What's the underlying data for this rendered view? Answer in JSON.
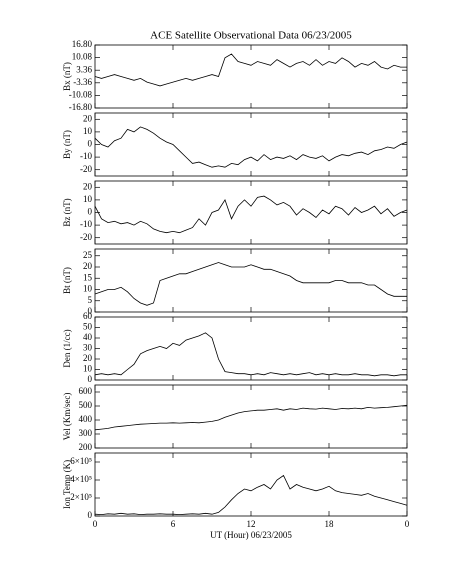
{
  "title": "ACE Satellite Observational Data   06/23/2005",
  "xlabel": "UT (Hour)   06/23/2005",
  "chart_data": [
    {
      "type": "line",
      "ylabel": "Bx (nT)",
      "color": "#000000",
      "x": [
        0,
        0.5,
        1,
        1.5,
        2,
        2.5,
        3,
        3.5,
        4,
        4.5,
        5,
        5.5,
        6,
        6.5,
        7,
        7.5,
        8,
        8.5,
        9,
        9.5,
        10,
        10.5,
        11,
        11.5,
        12,
        12.5,
        13,
        13.5,
        14,
        14.5,
        15,
        15.5,
        16,
        16.5,
        17,
        17.5,
        18,
        18.5,
        19,
        19.5,
        20,
        20.5,
        21,
        21.5,
        22,
        22.5,
        23,
        23.5,
        24
      ],
      "values": [
        0,
        -1,
        0,
        1,
        0,
        -1,
        -2,
        -1,
        -3,
        -4,
        -5,
        -4,
        -3,
        -2,
        -1,
        -2,
        -1,
        0,
        1,
        0,
        10,
        12,
        8,
        7,
        6,
        8,
        7,
        6,
        9,
        7,
        5,
        7,
        8,
        6,
        9,
        6,
        8,
        7,
        10,
        8,
        5,
        7,
        6,
        8,
        5,
        4,
        6,
        5,
        5
      ],
      "ylim": [
        -16.8,
        16.8
      ],
      "yticks": [
        {
          "value": 16.8,
          "label": "16.80"
        },
        10.08,
        3.36,
        -3.36,
        -10.08,
        {
          "value": -16.8,
          "label": "-16.80"
        }
      ]
    },
    {
      "type": "line",
      "ylabel": "By (nT)",
      "color": "#000000",
      "x": [
        0,
        0.5,
        1,
        1.5,
        2,
        2.5,
        3,
        3.5,
        4,
        4.5,
        5,
        5.5,
        6,
        6.5,
        7,
        7.5,
        8,
        8.5,
        9,
        9.5,
        10,
        10.5,
        11,
        11.5,
        12,
        12.5,
        13,
        13.5,
        14,
        14.5,
        15,
        15.5,
        16,
        16.5,
        17,
        17.5,
        18,
        18.5,
        19,
        19.5,
        20,
        20.5,
        21,
        21.5,
        22,
        22.5,
        23,
        23.5,
        24
      ],
      "values": [
        5,
        0,
        -2,
        3,
        5,
        12,
        10,
        14,
        12,
        9,
        5,
        2,
        0,
        -5,
        -10,
        -15,
        -14,
        -16,
        -18,
        -17,
        -18,
        -15,
        -16,
        -12,
        -10,
        -13,
        -8,
        -12,
        -10,
        -11,
        -9,
        -12,
        -8,
        -10,
        -11,
        -9,
        -13,
        -10,
        -8,
        -9,
        -7,
        -6,
        -8,
        -5,
        -4,
        -2,
        -3,
        0,
        2
      ],
      "ylim": [
        -25,
        25
      ],
      "yticks": [
        20,
        10,
        0,
        -10,
        -20
      ]
    },
    {
      "type": "line",
      "ylabel": "Bz (nT)",
      "color": "#000000",
      "x": [
        0,
        0.5,
        1,
        1.5,
        2,
        2.5,
        3,
        3.5,
        4,
        4.5,
        5,
        5.5,
        6,
        6.5,
        7,
        7.5,
        8,
        8.5,
        9,
        9.5,
        10,
        10.5,
        11,
        11.5,
        12,
        12.5,
        13,
        13.5,
        14,
        14.5,
        15,
        15.5,
        16,
        16.5,
        17,
        17.5,
        18,
        18.5,
        19,
        19.5,
        20,
        20.5,
        21,
        21.5,
        22,
        22.5,
        23,
        23.5,
        24
      ],
      "values": [
        5,
        -5,
        -8,
        -7,
        -9,
        -8,
        -10,
        -7,
        -9,
        -13,
        -15,
        -16,
        -15,
        -16,
        -14,
        -12,
        -5,
        -10,
        0,
        2,
        10,
        -5,
        5,
        10,
        5,
        12,
        13,
        10,
        6,
        8,
        5,
        -2,
        3,
        0,
        -4,
        2,
        -1,
        5,
        3,
        -2,
        4,
        0,
        2,
        5,
        -1,
        3,
        -3,
        0,
        2
      ],
      "ylim": [
        -25,
        25
      ],
      "yticks": [
        20,
        10,
        0,
        -10,
        -20
      ]
    },
    {
      "type": "line",
      "ylabel": "Bt (nT)",
      "color": "#000000",
      "x": [
        0,
        0.5,
        1,
        1.5,
        2,
        2.5,
        3,
        3.5,
        4,
        4.5,
        5,
        5.5,
        6,
        6.5,
        7,
        7.5,
        8,
        8.5,
        9,
        9.5,
        10,
        10.5,
        11,
        11.5,
        12,
        12.5,
        13,
        13.5,
        14,
        14.5,
        15,
        15.5,
        16,
        16.5,
        17,
        17.5,
        18,
        18.5,
        19,
        19.5,
        20,
        20.5,
        21,
        21.5,
        22,
        22.5,
        23,
        23.5,
        24
      ],
      "values": [
        8,
        9,
        10,
        10,
        11,
        9,
        6,
        4,
        3,
        4,
        14,
        15,
        16,
        17,
        17,
        18,
        19,
        20,
        21,
        22,
        21,
        20,
        20,
        20,
        21,
        20,
        19,
        19,
        18,
        17,
        16,
        14,
        13,
        13,
        13,
        13,
        13,
        14,
        14,
        13,
        13,
        13,
        12,
        12,
        10,
        8,
        7,
        7,
        7
      ],
      "ylim": [
        0,
        28
      ],
      "yticks": [
        25,
        20,
        15,
        10,
        5,
        0
      ]
    },
    {
      "type": "line",
      "ylabel": "Den (1/cc)",
      "color": "#000000",
      "x": [
        0,
        0.5,
        1,
        1.5,
        2,
        2.5,
        3,
        3.5,
        4,
        4.5,
        5,
        5.5,
        6,
        6.5,
        7,
        7.5,
        8,
        8.5,
        9,
        9.5,
        10,
        10.5,
        11,
        11.5,
        12,
        12.5,
        13,
        13.5,
        14,
        14.5,
        15,
        15.5,
        16,
        16.5,
        17,
        17.5,
        18,
        18.5,
        19,
        19.5,
        20,
        20.5,
        21,
        21.5,
        22,
        22.5,
        23,
        23.5,
        24
      ],
      "values": [
        5,
        6,
        5,
        6,
        5,
        10,
        15,
        25,
        28,
        30,
        32,
        30,
        35,
        33,
        38,
        40,
        42,
        45,
        40,
        20,
        8,
        7,
        6,
        6,
        5,
        6,
        5,
        7,
        6,
        5,
        6,
        5,
        6,
        7,
        5,
        6,
        5,
        6,
        5,
        5,
        6,
        5,
        5,
        4,
        5,
        5,
        4,
        5,
        5
      ],
      "ylim": [
        0,
        60
      ],
      "yticks": [
        60,
        50,
        40,
        30,
        20,
        10,
        0
      ]
    },
    {
      "type": "line",
      "ylabel": "Vel (Km/sec)",
      "color": "#000000",
      "x": [
        0,
        0.5,
        1,
        1.5,
        2,
        2.5,
        3,
        3.5,
        4,
        4.5,
        5,
        5.5,
        6,
        6.5,
        7,
        7.5,
        8,
        8.5,
        9,
        9.5,
        10,
        10.5,
        11,
        11.5,
        12,
        12.5,
        13,
        13.5,
        14,
        14.5,
        15,
        15.5,
        16,
        16.5,
        17,
        17.5,
        18,
        18.5,
        19,
        19.5,
        20,
        20.5,
        21,
        21.5,
        22,
        22.5,
        23,
        23.5,
        24
      ],
      "values": [
        330,
        335,
        340,
        350,
        355,
        360,
        365,
        370,
        372,
        375,
        378,
        378,
        380,
        378,
        380,
        382,
        380,
        385,
        390,
        400,
        420,
        435,
        450,
        460,
        465,
        470,
        470,
        475,
        480,
        470,
        480,
        475,
        485,
        480,
        478,
        485,
        480,
        475,
        482,
        480,
        485,
        480,
        490,
        485,
        488,
        490,
        495,
        500,
        505
      ],
      "ylim": [
        200,
        650
      ],
      "yticks": [
        600,
        500,
        400,
        300,
        200
      ]
    },
    {
      "type": "line",
      "ylabel": "Ion Temp (K)",
      "color": "#000000",
      "x": [
        0,
        0.5,
        1,
        1.5,
        2,
        2.5,
        3,
        3.5,
        4,
        4.5,
        5,
        5.5,
        6,
        6.5,
        7,
        7.5,
        8,
        8.5,
        9,
        9.5,
        10,
        10.5,
        11,
        11.5,
        12,
        12.5,
        13,
        13.5,
        14,
        14.5,
        15,
        15.5,
        16,
        16.5,
        17,
        17.5,
        18,
        18.5,
        19,
        19.5,
        20,
        20.5,
        21,
        21.5,
        22,
        22.5,
        23,
        23.5,
        24
      ],
      "values": [
        20000,
        15000,
        25000,
        20000,
        30000,
        20000,
        25000,
        15000,
        20000,
        20000,
        25000,
        20000,
        20000,
        15000,
        20000,
        25000,
        20000,
        30000,
        20000,
        40000,
        100000,
        180000,
        250000,
        300000,
        280000,
        320000,
        350000,
        300000,
        400000,
        450000,
        300000,
        350000,
        320000,
        300000,
        280000,
        300000,
        330000,
        280000,
        260000,
        250000,
        240000,
        230000,
        250000,
        220000,
        200000,
        180000,
        160000,
        140000,
        120000
      ],
      "ylim": [
        0,
        700000
      ],
      "yticks": [
        {
          "value": 600000,
          "label": "6×10⁵"
        },
        {
          "value": 400000,
          "label": "4×10⁵"
        },
        {
          "value": 200000,
          "label": "2×10⁵"
        },
        0
      ],
      "xlim": [
        0,
        24
      ],
      "xticks": [
        0,
        6,
        12,
        18,
        {
          "value": 24,
          "label": "0"
        }
      ]
    }
  ]
}
